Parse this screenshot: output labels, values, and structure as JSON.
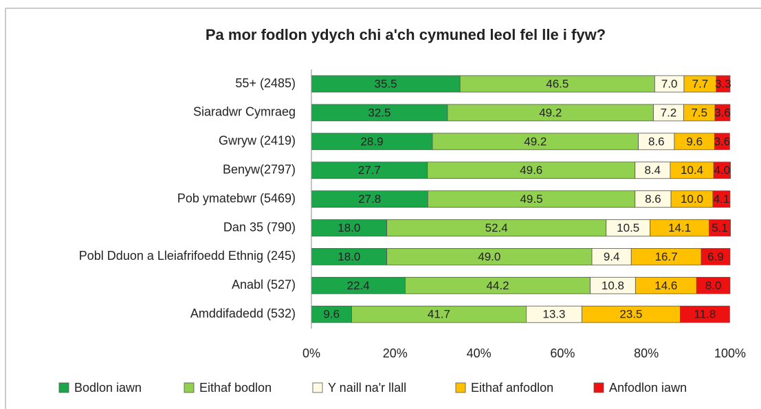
{
  "chart_data": {
    "type": "stacked_bar_horizontal",
    "title": "Pa mor fodlon ydych chi a'ch cymuned leol fel lle i fyw?",
    "categories": [
      "55+ (2485)",
      "Siaradwr Cymraeg",
      "Gwryw (2419)",
      "Benyw(2797)",
      "Pob ymatebwr (5469)",
      "Dan 35 (790)",
      "Pobl Dduon a Lleiafrifoedd Ethnig (245)",
      "Anabl (527)",
      "Amddifadedd (532)"
    ],
    "series": [
      {
        "name": "Bodlon iawn",
        "color": "#1ca64a",
        "values": [
          35.5,
          32.5,
          28.9,
          27.7,
          27.8,
          18.0,
          18.0,
          22.4,
          9.6
        ],
        "value_labels": [
          "35.5",
          "32.5",
          "28.9",
          "27.7",
          "27.8",
          "18.0",
          "18.0",
          "22.4",
          "9.6"
        ]
      },
      {
        "name": "Eithaf bodlon",
        "color": "#92d050",
        "values": [
          46.5,
          49.2,
          49.2,
          49.6,
          49.5,
          52.4,
          49.0,
          44.2,
          41.7
        ],
        "value_labels": [
          "46.5",
          "49.2",
          "49.2",
          "49.6",
          "49.5",
          "52.4",
          "49.0",
          "44.2",
          "41.7"
        ]
      },
      {
        "name": "Y naill na'r llall",
        "color": "#fefbe2",
        "values": [
          7.0,
          7.2,
          8.6,
          8.4,
          8.6,
          10.5,
          9.4,
          10.8,
          13.3
        ],
        "value_labels": [
          "7.0",
          "7.2",
          "8.6",
          "8.4",
          "8.6",
          "10.5",
          "9.4",
          "10.8",
          "13.3"
        ]
      },
      {
        "name": "Eithaf anfodlon",
        "color": "#ffc000",
        "values": [
          7.7,
          7.5,
          9.6,
          10.4,
          10.0,
          14.1,
          16.7,
          14.6,
          23.5
        ],
        "value_labels": [
          "7.7",
          "7.5",
          "9.6",
          "10.4",
          "10.0",
          "14.1",
          "16.7",
          "14.6",
          "23.5"
        ]
      },
      {
        "name": "Anfodlon iawn",
        "color": "#ee1111",
        "values": [
          3.3,
          3.6,
          3.6,
          4.0,
          4.1,
          5.1,
          6.9,
          8.0,
          11.8
        ],
        "value_labels": [
          "3.3",
          "3.6",
          "3.6",
          "4.0",
          "4.1",
          "5.1",
          "6.9",
          "8.0",
          "11.8"
        ]
      }
    ],
    "xlim": [
      0,
      100
    ],
    "xticks": [
      {
        "value": 0,
        "label": "0%"
      },
      {
        "value": 20,
        "label": "20%"
      },
      {
        "value": 40,
        "label": "40%"
      },
      {
        "value": 60,
        "label": "60%"
      },
      {
        "value": 80,
        "label": "80%"
      },
      {
        "value": 100,
        "label": "100%"
      }
    ],
    "legend": "bottom"
  }
}
